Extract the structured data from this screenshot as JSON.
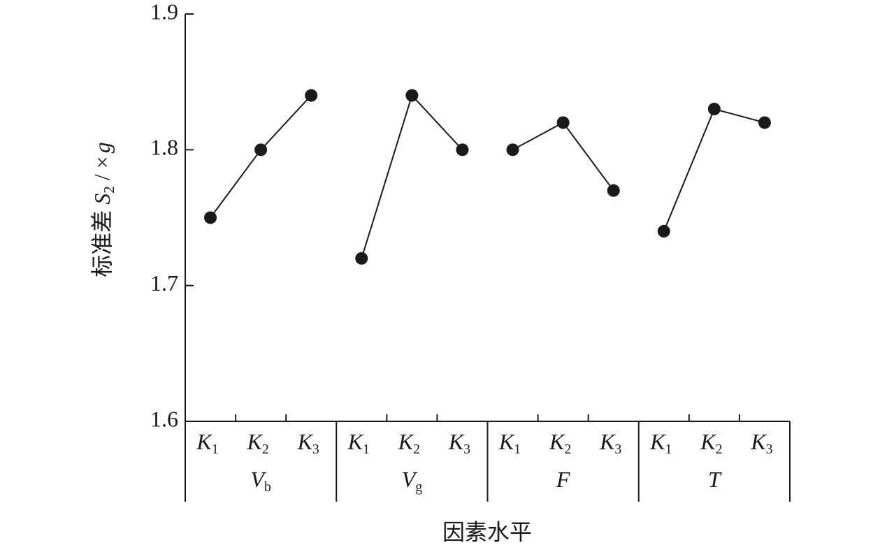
{
  "chart_data": {
    "type": "line",
    "y_label": {
      "prefix": "标准差",
      "var": "S",
      "sub": "2",
      "unit": "/ ×",
      "unit_var": "g"
    },
    "x_label": "因素水平",
    "ylim": [
      1.6,
      1.9
    ],
    "yticks": [
      1.6,
      1.7,
      1.8,
      1.9
    ],
    "color": "#1a1a1a",
    "groups": [
      {
        "name": {
          "text": "V",
          "sub": "b"
        },
        "categories": [
          {
            "text": "K",
            "sub": "1"
          },
          {
            "text": "K",
            "sub": "2"
          },
          {
            "text": "K",
            "sub": "3"
          }
        ],
        "values": [
          1.75,
          1.8,
          1.84
        ]
      },
      {
        "name": {
          "text": "V",
          "sub": "g"
        },
        "categories": [
          {
            "text": "K",
            "sub": "1"
          },
          {
            "text": "K",
            "sub": "2"
          },
          {
            "text": "K",
            "sub": "3"
          }
        ],
        "values": [
          1.72,
          1.84,
          1.8
        ]
      },
      {
        "name": {
          "text": "F"
        },
        "categories": [
          {
            "text": "K",
            "sub": "1"
          },
          {
            "text": "K",
            "sub": "2"
          },
          {
            "text": "K",
            "sub": "3"
          }
        ],
        "values": [
          1.8,
          1.82,
          1.77
        ]
      },
      {
        "name": {
          "text": "T"
        },
        "categories": [
          {
            "text": "K",
            "sub": "1"
          },
          {
            "text": "K",
            "sub": "2"
          },
          {
            "text": "K",
            "sub": "3"
          }
        ],
        "values": [
          1.74,
          1.83,
          1.82
        ]
      }
    ]
  }
}
